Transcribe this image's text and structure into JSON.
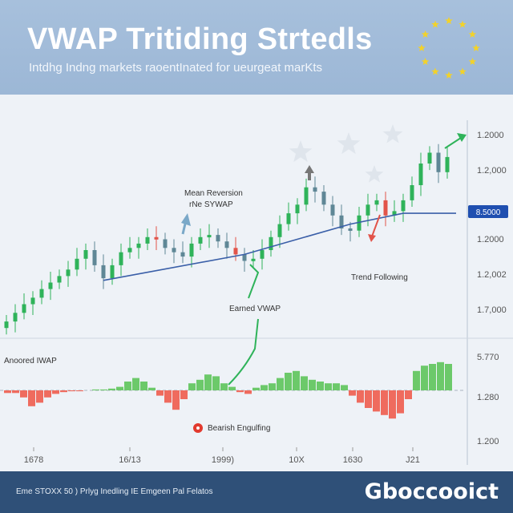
{
  "header": {
    "title": "VWAP Tritiding Strtedls",
    "subtitle": "Intdhg Indng markets raoentInated for ueurgeat marKts"
  },
  "footer": {
    "text": "Eme STOXX 50 ) Prlyg Inedling IE Emgeen Pal Felatos",
    "brand": "Gboccooict"
  },
  "chart_data": {
    "type": "candlestick",
    "ylim": [
      0,
      100
    ],
    "y_tick_labels": [
      "1.2000",
      "1.2,000",
      "1.2000",
      "1.2,002",
      "1.7,000"
    ],
    "current_price_label": "8.5000",
    "x_tick_labels": [
      "1678",
      "16/13",
      "1999)",
      "10X",
      "1630",
      "J21"
    ],
    "closes": [
      7,
      11,
      15,
      18,
      22,
      25,
      28,
      31,
      36,
      40,
      33,
      27,
      33,
      39,
      41,
      43,
      46,
      45,
      41,
      39,
      37,
      43,
      46,
      47,
      44,
      41,
      38,
      35,
      36,
      40,
      46,
      52,
      57,
      61,
      69,
      67,
      61,
      56,
      50,
      49,
      56,
      61,
      63,
      56,
      58,
      63,
      70,
      80,
      85,
      76,
      83
    ],
    "red_candles": [
      17,
      26,
      43
    ],
    "vwap": [
      [
        11,
        26
      ],
      [
        27,
        38
      ],
      [
        39,
        52
      ],
      [
        45,
        57
      ],
      [
        51,
        57
      ]
    ],
    "colors": {
      "up": "#2fb35a",
      "down": "#5f8796",
      "red": "#e2544a",
      "vwap": "#3a5fa8",
      "hist_pos": "#6cc96a",
      "hist_neg": "#ef6b5e",
      "price_tag": "#1f4fb0"
    },
    "histogram": {
      "label": "Anoored IWAP",
      "ylim": [
        -40,
        45
      ],
      "y_tick_labels": [
        "5.770",
        "1.280",
        "1.200"
      ],
      "values": [
        -3,
        -3,
        -8,
        -18,
        -14,
        -8,
        -4,
        -2,
        -1,
        -1,
        0,
        1,
        1,
        2,
        4,
        10,
        14,
        10,
        3,
        -6,
        -14,
        -22,
        -10,
        8,
        12,
        18,
        16,
        8,
        4,
        -2,
        -4,
        3,
        6,
        8,
        14,
        20,
        22,
        16,
        12,
        10,
        8,
        8,
        6,
        -6,
        -14,
        -20,
        -24,
        -28,
        -32,
        -26,
        -10,
        22,
        28,
        30,
        32,
        30
      ]
    },
    "annotations": {
      "mean_reversion": "Mean Reversion",
      "mean_reversion_2": "rNe SYWAP",
      "trend_following": "Trend Following",
      "earned_vwap": "Earned VWAP",
      "bearish": "Bearish Engulfing"
    }
  }
}
